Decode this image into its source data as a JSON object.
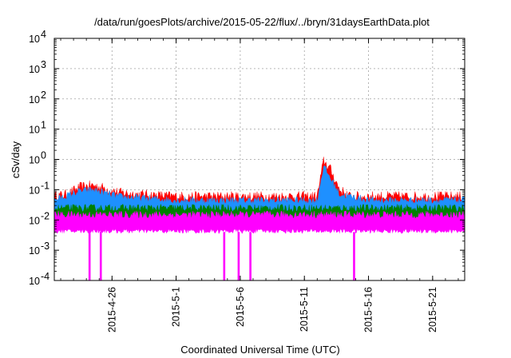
{
  "chart_data": {
    "type": "area",
    "title": "/data/run/goesPlots/archive/2015-05-22/flux/../bryn/31daysEarthData.plot",
    "xlabel": "Coordinated Universal Time (UTC)",
    "ylabel": "cSv/day",
    "yscale": "log",
    "ylim": [
      0.0001,
      10000
    ],
    "xlim": [
      "2015-04-21T12:00",
      "2015-05-23T12:00"
    ],
    "grid": true,
    "y_ticks": [
      {
        "base": "10",
        "exp": "-4",
        "value": 0.0001
      },
      {
        "base": "10",
        "exp": "-3",
        "value": 0.001
      },
      {
        "base": "10",
        "exp": "-2",
        "value": 0.01
      },
      {
        "base": "10",
        "exp": "-1",
        "value": 0.1
      },
      {
        "base": "10",
        "exp": "0",
        "value": 1
      },
      {
        "base": "10",
        "exp": "1",
        "value": 10
      },
      {
        "base": "10",
        "exp": "2",
        "value": 100
      },
      {
        "base": "10",
        "exp": "3",
        "value": 1000
      },
      {
        "base": "10",
        "exp": "4",
        "value": 10000
      }
    ],
    "x_ticks": [
      {
        "label": "2015-4-26",
        "date": "2015-04-26"
      },
      {
        "label": "2015-5-1",
        "date": "2015-05-01"
      },
      {
        "label": "2015-5-6",
        "date": "2015-05-06"
      },
      {
        "label": "2015-5-11",
        "date": "2015-05-11"
      },
      {
        "label": "2015-5-16",
        "date": "2015-05-16"
      },
      {
        "label": "2015-5-21",
        "date": "2015-05-21"
      }
    ],
    "series": [
      {
        "color": "#ff0000",
        "values": [
          {
            "date": "2015-04-21T12:00",
            "y": 0.06
          },
          {
            "date": "2015-04-22T12:00",
            "y": 0.07
          },
          {
            "date": "2015-04-23T12:00",
            "y": 0.12
          },
          {
            "date": "2015-04-24T12:00",
            "y": 0.14
          },
          {
            "date": "2015-04-25T12:00",
            "y": 0.11
          },
          {
            "date": "2015-04-26T12:00",
            "y": 0.08
          },
          {
            "date": "2015-04-28T00:00",
            "y": 0.07
          },
          {
            "date": "2015-05-01T00:00",
            "y": 0.06
          },
          {
            "date": "2015-05-04T00:00",
            "y": 0.06
          },
          {
            "date": "2015-05-07T00:00",
            "y": 0.06
          },
          {
            "date": "2015-05-10T00:00",
            "y": 0.06
          },
          {
            "date": "2015-05-12T00:00",
            "y": 0.06
          },
          {
            "date": "2015-05-12T12:00",
            "y": 0.9
          },
          {
            "date": "2015-05-13T00:00",
            "y": 0.5
          },
          {
            "date": "2015-05-13T18:00",
            "y": 0.1
          },
          {
            "date": "2015-05-14T12:00",
            "y": 0.06
          },
          {
            "date": "2015-05-17T00:00",
            "y": 0.06
          },
          {
            "date": "2015-05-20T00:00",
            "y": 0.06
          },
          {
            "date": "2015-05-23T12:00",
            "y": 0.06
          }
        ]
      },
      {
        "color": "#1e90ff",
        "values": [
          {
            "date": "2015-04-21T12:00",
            "y": 0.045
          },
          {
            "date": "2015-04-23T12:00",
            "y": 0.09
          },
          {
            "date": "2015-04-24T12:00",
            "y": 0.1
          },
          {
            "date": "2015-04-26T12:00",
            "y": 0.06
          },
          {
            "date": "2015-05-01T00:00",
            "y": 0.045
          },
          {
            "date": "2015-05-06T00:00",
            "y": 0.045
          },
          {
            "date": "2015-05-12T00:00",
            "y": 0.045
          },
          {
            "date": "2015-05-12T12:00",
            "y": 0.6
          },
          {
            "date": "2015-05-13T18:00",
            "y": 0.07
          },
          {
            "date": "2015-05-16T00:00",
            "y": 0.045
          },
          {
            "date": "2015-05-23T12:00",
            "y": 0.045
          }
        ]
      },
      {
        "color": "#008000",
        "values": [
          {
            "date": "2015-04-21T12:00",
            "y": 0.025
          },
          {
            "date": "2015-05-06T00:00",
            "y": 0.025
          },
          {
            "date": "2015-05-23T12:00",
            "y": 0.025
          }
        ]
      },
      {
        "color": "#ff00ff",
        "values": [
          {
            "date": "2015-04-21T12:00",
            "y": 0.015
          },
          {
            "date": "2015-05-06T00:00",
            "y": 0.015
          },
          {
            "date": "2015-05-23T12:00",
            "y": 0.015
          }
        ]
      }
    ],
    "magenta_dropouts": [
      "2015-04-24T06:00",
      "2015-04-25T03:00",
      "2015-05-04T18:00",
      "2015-05-05T21:00",
      "2015-05-06T19:00",
      "2015-05-14T21:00"
    ]
  }
}
